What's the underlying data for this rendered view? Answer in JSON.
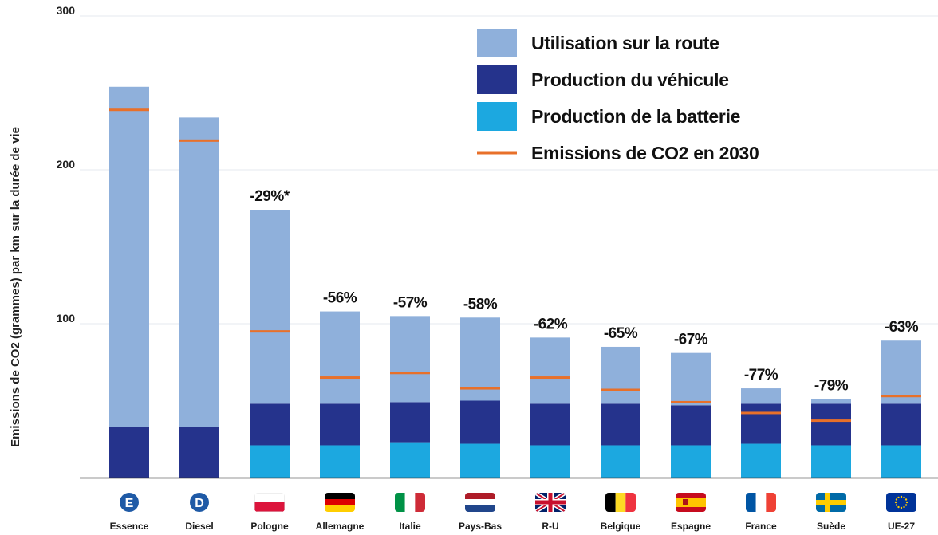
{
  "chart_data": {
    "type": "bar",
    "stacked": true,
    "title": "",
    "xlabel": "",
    "ylabel": "Emissions de CO2 (grammes) par km sur la durée de vie",
    "ylim": [
      0,
      300
    ],
    "yticks": [
      "100",
      "200",
      "300"
    ],
    "grid": true,
    "legend_position": "top-right",
    "categories": [
      "Essence",
      "Diesel",
      "Pologne",
      "Allemagne",
      "Italie",
      "Pays-Bas",
      "R-U",
      "Belgique",
      "Espagne",
      "France",
      "Suède",
      "UE-27"
    ],
    "category_icons": [
      "fuel-essence-icon",
      "fuel-diesel-icon",
      "flag-poland-icon",
      "flag-germany-icon",
      "flag-italy-icon",
      "flag-netherlands-icon",
      "flag-uk-icon",
      "flag-belgium-icon",
      "flag-spain-icon",
      "flag-france-icon",
      "flag-sweden-icon",
      "flag-eu-icon"
    ],
    "series": [
      {
        "name": "Production de la batterie",
        "color": "#1ca8e0",
        "values": [
          0,
          0,
          21,
          21,
          23,
          22,
          21,
          21,
          21,
          22,
          21,
          21
        ]
      },
      {
        "name": "Production du véhicule",
        "color": "#25338c",
        "values": [
          33,
          33,
          27,
          27,
          26,
          28,
          27,
          27,
          26,
          26,
          27,
          27
        ]
      },
      {
        "name": "Utilisation sur la route",
        "color": "#8fb0db",
        "values": [
          221,
          201,
          126,
          60,
          56,
          54,
          43,
          37,
          34,
          10,
          3,
          41
        ]
      }
    ],
    "emissions_2030": {
      "name": "Emissions de CO2 en 2030",
      "color": "#e8702a",
      "values": [
        239,
        219,
        95,
        65,
        68,
        58,
        65,
        57,
        49,
        42,
        37,
        53
      ]
    },
    "annotations": [
      "",
      "",
      "-29%*",
      "-56%",
      "-57%",
      "-58%",
      "-62%",
      "-65%",
      "-67%",
      "-77%",
      "-79%",
      "-63%"
    ]
  }
}
